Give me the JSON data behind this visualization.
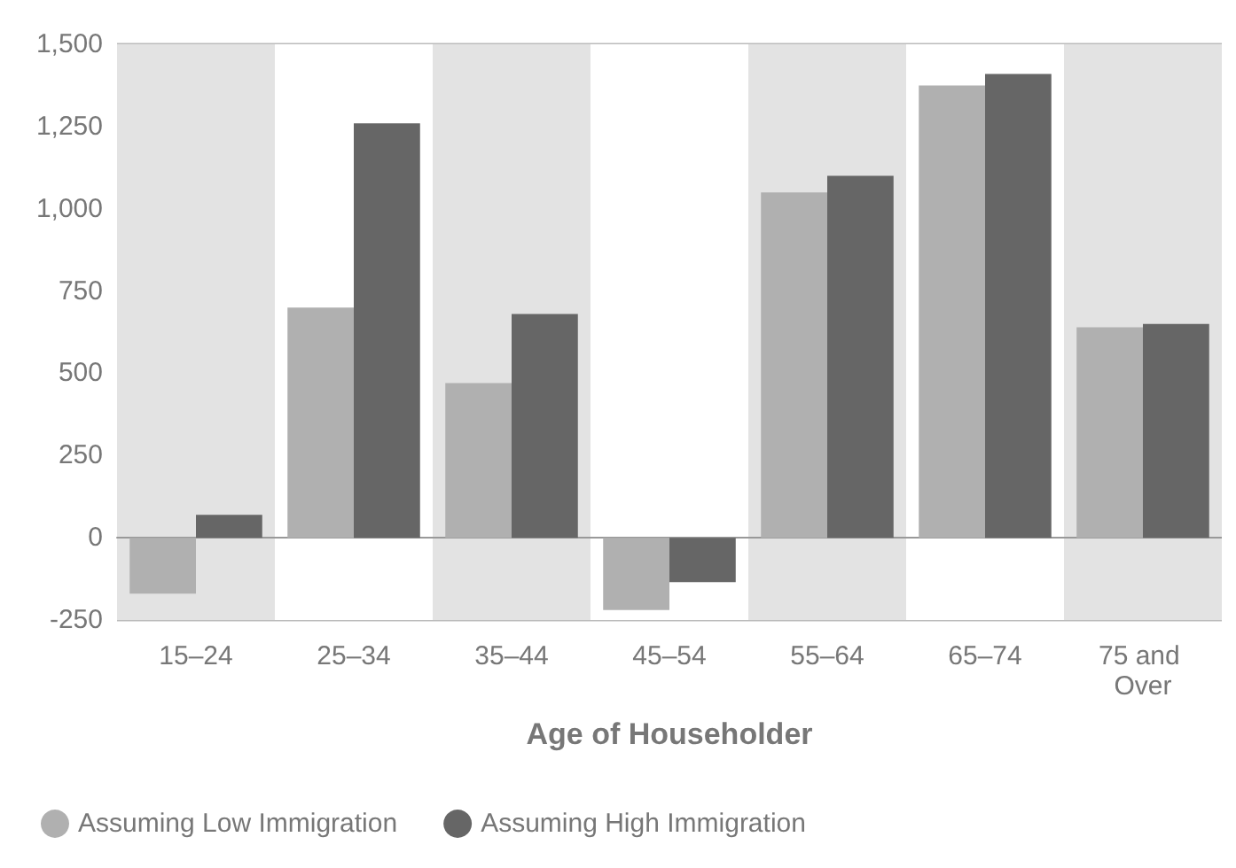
{
  "chart_data": {
    "type": "bar",
    "xlabel": "Age of Householder",
    "categories": [
      "15–24",
      "25–34",
      "35–44",
      "45–54",
      "55–64",
      "65–74",
      "75 and Over"
    ],
    "series": [
      {
        "name": "Assuming Low Immigration",
        "color": "#b0b0b0",
        "values": [
          -170,
          700,
          470,
          -220,
          1050,
          1375,
          640
        ]
      },
      {
        "name": "Assuming High Immigration",
        "color": "#666666",
        "values": [
          70,
          1260,
          680,
          -135,
          1100,
          1410,
          650
        ]
      }
    ],
    "ylim": [
      -250,
      1500
    ],
    "yticks": [
      {
        "value": -250,
        "label": "-250"
      },
      0,
      250,
      500,
      750,
      {
        "value": 1000,
        "label": "1,000"
      },
      {
        "value": 1250,
        "label": "1,250"
      },
      {
        "value": 1500,
        "label": "1,500"
      }
    ],
    "grid": "y",
    "legend": "bottom"
  }
}
